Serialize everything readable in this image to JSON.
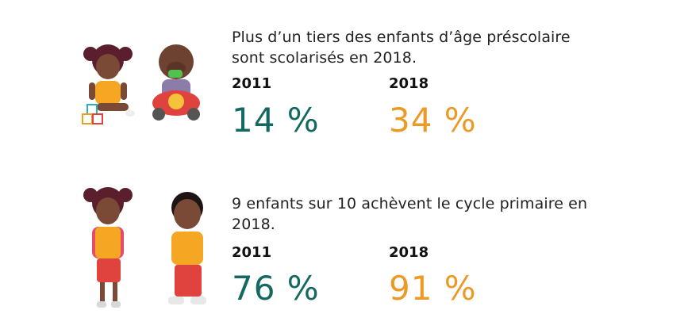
{
  "colors": {
    "teal": "#13695f",
    "orange": "#ec9a25"
  },
  "sections": [
    {
      "headline": "Plus d’un tiers des enfants d’âge préscolaire sont scolarisés en 2018.",
      "year_a": "2011",
      "value_a": "14 %",
      "year_b": "2018",
      "value_b": "34 %",
      "illustration": "toddler-girl-with-blocks-and-baby-on-toy-car"
    },
    {
      "headline": "9 enfants sur 10 achèvent le cycle primaire en 2018.",
      "year_a": "2011",
      "value_a": "76 %",
      "year_b": "2018",
      "value_b": "91 %",
      "illustration": "schoolgirl-with-backpack-and-boy"
    }
  ]
}
